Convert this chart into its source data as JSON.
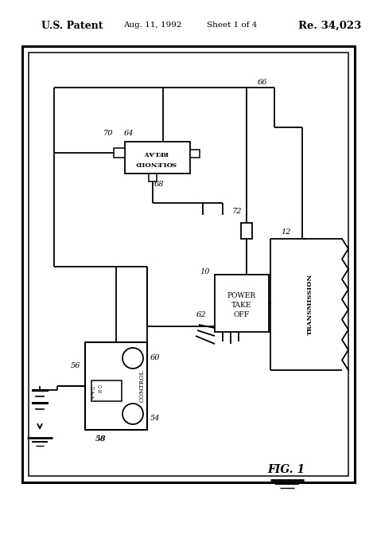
{
  "bg_color": "#ffffff",
  "header_left": "U.S. Patent",
  "header_mid1": "Aug. 11, 1992",
  "header_mid2": "Sheet 1 of 4",
  "header_right": "Re. 34,023",
  "fig_label": "FIG. 1"
}
